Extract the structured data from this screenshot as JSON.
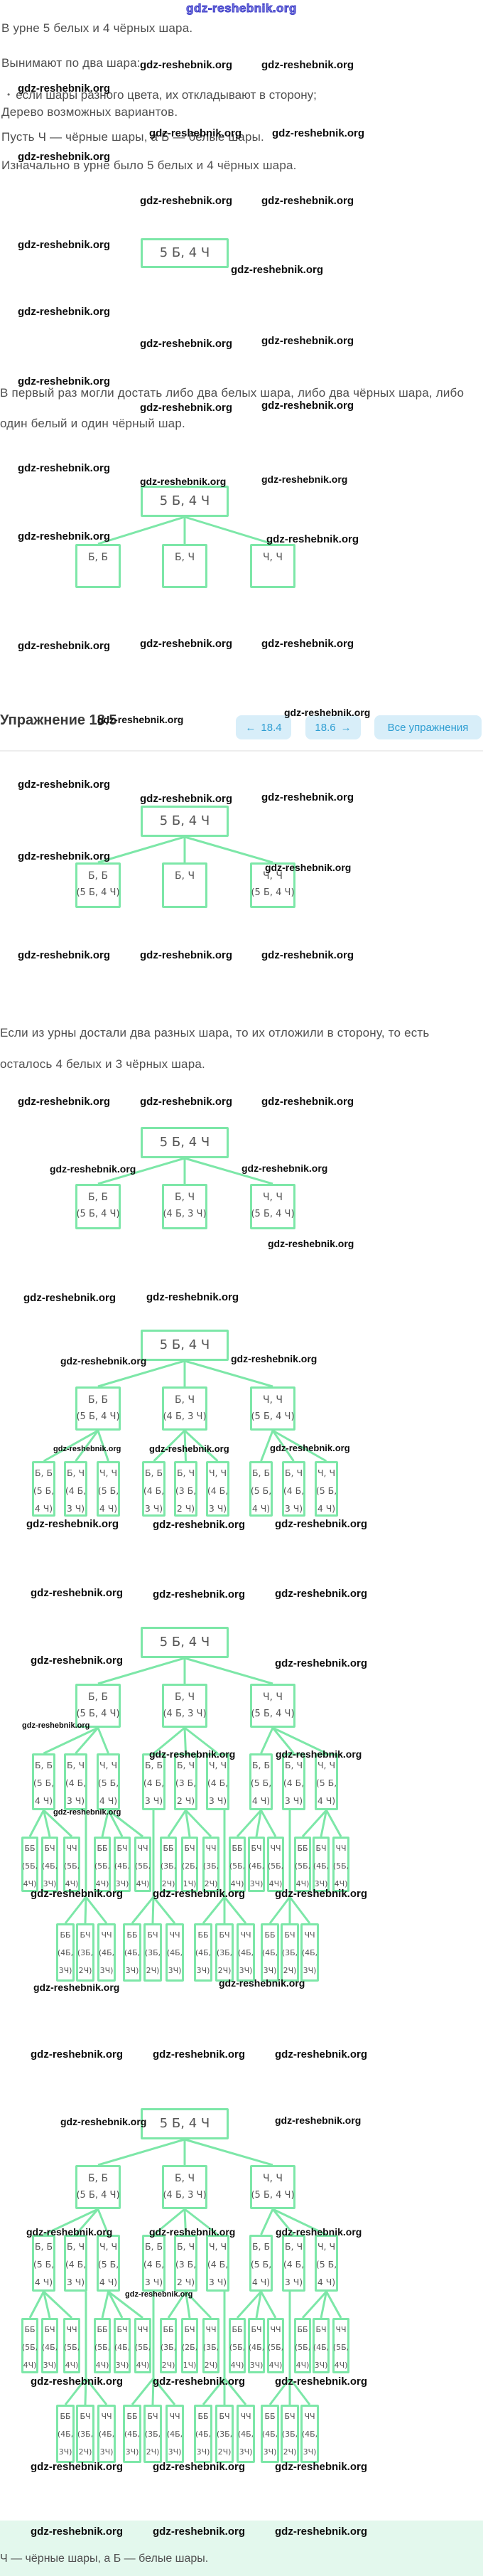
{
  "watermark": "gdz-reshebnik.org",
  "logo": "gdz-reshebnik.org",
  "intro": {
    "line1": "В урне 5 белых и 4 чёрных шара.",
    "line2": "Вынимают по два шара:",
    "bullet": "если шары разного цвета, их откладывают в сторону;",
    "line3": "Дерево возможных вариантов.",
    "line4": "Пусть Ч — чёрные шары, а Б — белые шары.",
    "line5": "Изначально в урне было 5 белых и 4 чёрных шара."
  },
  "paragraph_first_draw": {
    "line1": "В первый раз могли достать либо два белых шара, либо два чёрных шара, либо",
    "line2": "один белый и один чёрный шар."
  },
  "exercise_nav": {
    "title": "Упражнение 18.5",
    "prev_arrow": "←",
    "prev_label": "18.4",
    "next_label": "18.6",
    "next_arrow": "→",
    "all_label": "Все упражнения"
  },
  "paragraph_second_draw": {
    "line1": "Если из урны достали два разных шара, то их отложили в сторону, то есть",
    "line2": "осталось 4 белых и 3 чёрных шара."
  },
  "footer": {
    "legend": "Ч — чёрные шары, а Б — белые шары."
  },
  "colors": {
    "box_border_green": "#7de7a8",
    "nav_button_bg": "#d8eef9",
    "nav_button_text": "#2f9ed2",
    "footer_band_bg": "#e3f8ed",
    "logo_blue": "#4040c8"
  },
  "trees": {
    "urn_initial": {
      "root": "5 Б, 4 Ч"
    },
    "first_draw": {
      "root": "5 Б, 4 Ч",
      "children": [
        [
          "Б, Б"
        ],
        [
          "Б, Ч"
        ],
        [
          "Ч, Ч"
        ]
      ]
    },
    "first_draw_states_partial": {
      "root": "5 Б, 4 Ч",
      "children": [
        [
          "Б, Б",
          "(5 Б, 4 Ч)"
        ],
        [
          "Б, Ч"
        ],
        [
          "Ч, Ч",
          "(5 Б, 4 Ч)"
        ]
      ]
    },
    "first_draw_states": {
      "root": "5 Б, 4 Ч",
      "children": [
        [
          "Б, Б",
          "(5 Б, 4 Ч)"
        ],
        [
          "Б, Ч",
          "(4 Б, 3 Ч)"
        ],
        [
          "Ч, Ч",
          "(5 Б, 4 Ч)"
        ]
      ]
    },
    "two_draws": {
      "root": "5 Б, 4 Ч",
      "level2": [
        [
          "Б, Б",
          "(5 Б, 4 Ч)"
        ],
        [
          "Б, Ч",
          "(4 Б, 3 Ч)"
        ],
        [
          "Ч, Ч",
          "(5 Б, 4 Ч)"
        ]
      ],
      "level3": [
        [
          "Б, Б",
          "(5 Б,",
          "4 Ч)"
        ],
        [
          "Б, Ч",
          "(4 Б,",
          "3 Ч)"
        ],
        [
          "Ч, Ч",
          "(5 Б,",
          "4 Ч)"
        ],
        [
          "Б, Б",
          "(4 Б,",
          "3 Ч)"
        ],
        [
          "Б, Ч",
          "(3 Б,",
          "2 Ч)"
        ],
        [
          "Ч, Ч",
          "(4 Б,",
          "3 Ч)"
        ],
        [
          "Б, Б",
          "(5 Б,",
          "4 Ч)"
        ],
        [
          "Б, Ч",
          "(4 Б,",
          "3 Ч)"
        ],
        [
          "Ч, Ч",
          "(5 Б,",
          "4 Ч)"
        ]
      ]
    },
    "three_draws": {
      "root": "5 Б, 4 Ч",
      "level2": [
        [
          "Б, Б",
          "(5 Б, 4 Ч)"
        ],
        [
          "Б, Ч",
          "(4 Б, 3 Ч)"
        ],
        [
          "Ч, Ч",
          "(5 Б, 4 Ч)"
        ]
      ],
      "level3": [
        [
          "Б, Б",
          "(5 Б,",
          "4 Ч)"
        ],
        [
          "Б, Ч",
          "(4 Б,",
          "3 Ч)"
        ],
        [
          "Ч, Ч",
          "(5 Б,",
          "4 Ч)"
        ],
        [
          "Б, Б",
          "(4 Б,",
          "3 Ч)"
        ],
        [
          "Б, Ч",
          "(3 Б,",
          "2 Ч)"
        ],
        [
          "Ч, Ч",
          "(4 Б,",
          "3 Ч)"
        ],
        [
          "Б, Б",
          "(5 Б,",
          "4 Ч)"
        ],
        [
          "Б, Ч",
          "(4 Б,",
          "3 Ч)"
        ],
        [
          "Ч, Ч",
          "(5 Б,",
          "4 Ч)"
        ]
      ],
      "level4_groups": [
        [
          [
            "ББ",
            "(5Б,",
            "4Ч)"
          ],
          [
            "БЧ",
            "(4Б,",
            "3Ч)"
          ],
          [
            "ЧЧ",
            "(5Б,",
            "4Ч)"
          ]
        ],
        [
          [
            "ББ",
            "(5Б,",
            "4Ч)"
          ],
          [
            "БЧ",
            "(4Б,",
            "3Ч)"
          ],
          [
            "ЧЧ",
            "(5Б,",
            "4Ч)"
          ]
        ],
        [
          [
            "ББ",
            "(3Б,",
            "2Ч)"
          ],
          [
            "БЧ",
            "(2Б,",
            "1Ч)"
          ],
          [
            "ЧЧ",
            "(3Б,",
            "2Ч)"
          ]
        ],
        [
          [
            "ББ",
            "(5Б,",
            "4Ч)"
          ],
          [
            "БЧ",
            "(4Б,",
            "3Ч)"
          ],
          [
            "ЧЧ",
            "(5Б,",
            "4Ч)"
          ]
        ],
        [
          [
            "ББ",
            "(5Б,",
            "4Ч)"
          ],
          [
            "БЧ",
            "(4Б,",
            "3Ч)"
          ],
          [
            "ЧЧ",
            "(5Б,",
            "4Ч)"
          ]
        ]
      ],
      "level5_groups": [
        [
          [
            "ББ",
            "(4Б,",
            "3Ч)"
          ],
          [
            "БЧ",
            "(3Б,",
            "2Ч)"
          ],
          [
            "ЧЧ",
            "(4Б,",
            "3Ч)"
          ]
        ],
        [
          [
            "ББ",
            "(4Б,",
            "3Ч)"
          ],
          [
            "БЧ",
            "(3Б,",
            "2Ч)"
          ],
          [
            "ЧЧ",
            "(4Б,",
            "3Ч)"
          ]
        ],
        [
          [
            "ББ",
            "(4Б,",
            "3Ч)"
          ],
          [
            "БЧ",
            "(3Б,",
            "2Ч)"
          ],
          [
            "ЧЧ",
            "(4Б,",
            "3Ч)"
          ]
        ],
        [
          [
            "ББ",
            "(4Б,",
            "3Ч)"
          ],
          [
            "БЧ",
            "(3Б,",
            "2Ч)"
          ],
          [
            "ЧЧ",
            "(4Б,",
            "3Ч)"
          ]
        ]
      ]
    }
  }
}
